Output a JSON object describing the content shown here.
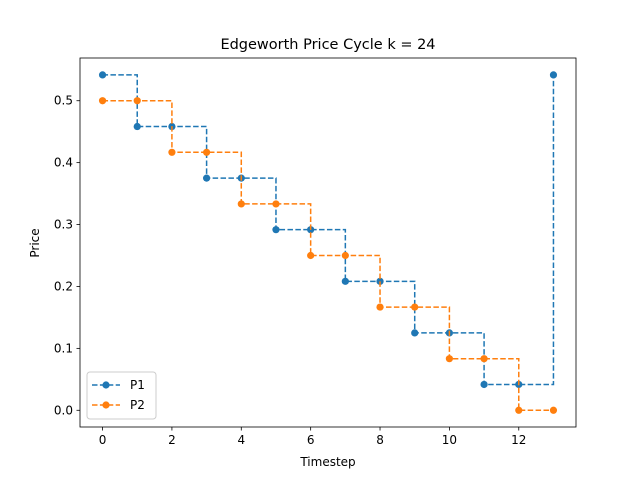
{
  "chart_data": {
    "type": "line",
    "title": "Edgeworth Price Cycle k = 24",
    "xlabel": "Timestep",
    "ylabel": "Price",
    "xlim": [
      -0.65,
      13.65
    ],
    "ylim": [
      -0.027,
      0.569
    ],
    "xticks": [
      0,
      2,
      4,
      6,
      8,
      10,
      12
    ],
    "yticks": [
      0.0,
      0.1,
      0.2,
      0.3,
      0.4,
      0.5
    ],
    "grid": false,
    "legend_position": "lower-left",
    "series": [
      {
        "name": "P1",
        "color": "#1f77b4",
        "step": "post",
        "linestyle": "dashed",
        "marker": "circle",
        "x": [
          0,
          1,
          2,
          3,
          4,
          5,
          6,
          7,
          8,
          9,
          10,
          11,
          12,
          13
        ],
        "values": [
          0.5417,
          0.4583,
          0.4583,
          0.375,
          0.375,
          0.2917,
          0.2917,
          0.2083,
          0.2083,
          0.125,
          0.125,
          0.0417,
          0.0417,
          0.5417
        ]
      },
      {
        "name": "P2",
        "color": "#ff7f0e",
        "step": "post",
        "linestyle": "dashed",
        "marker": "circle",
        "x": [
          0,
          1,
          2,
          3,
          4,
          5,
          6,
          7,
          8,
          9,
          10,
          11,
          12,
          13
        ],
        "values": [
          0.5,
          0.5,
          0.4167,
          0.4167,
          0.3333,
          0.3333,
          0.25,
          0.25,
          0.1667,
          0.1667,
          0.0833,
          0.0833,
          0.0,
          0.0
        ]
      }
    ]
  }
}
